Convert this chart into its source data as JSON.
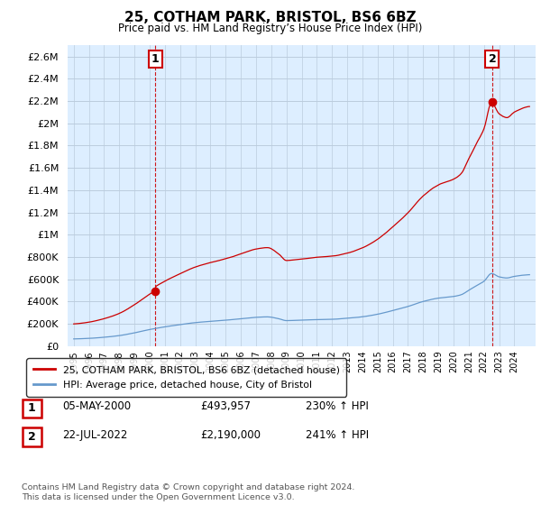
{
  "title": "25, COTHAM PARK, BRISTOL, BS6 6BZ",
  "subtitle": "Price paid vs. HM Land Registry’s House Price Index (HPI)",
  "ylim": [
    0,
    2700000
  ],
  "yticks": [
    0,
    200000,
    400000,
    600000,
    800000,
    1000000,
    1200000,
    1400000,
    1600000,
    1800000,
    2000000,
    2200000,
    2400000,
    2600000
  ],
  "ytick_labels": [
    "£0",
    "£200K",
    "£400K",
    "£600K",
    "£800K",
    "£1M",
    "£1.2M",
    "£1.4M",
    "£1.6M",
    "£1.8M",
    "£2M",
    "£2.2M",
    "£2.4M",
    "£2.6M"
  ],
  "sale1_year": 2000.37,
  "sale1_price": 493957,
  "sale2_year": 2022.55,
  "sale2_price": 2190000,
  "line_color_red": "#cc0000",
  "line_color_blue": "#6699cc",
  "dashed_color": "#cc0000",
  "bg_color": "#ddeeff",
  "grid_color": "#bbccdd",
  "annotation_box_color": "#cc0000",
  "footer": "Contains HM Land Registry data © Crown copyright and database right 2024.\nThis data is licensed under the Open Government Licence v3.0.",
  "legend_label1": "25, COTHAM PARK, BRISTOL, BS6 6BZ (detached house)",
  "legend_label2": "HPI: Average price, detached house, City of Bristol",
  "table_row1": [
    "1",
    "05-MAY-2000",
    "£493,957",
    "230% ↑ HPI"
  ],
  "table_row2": [
    "2",
    "22-JUL-2022",
    "£2,190,000",
    "241% ↑ HPI"
  ]
}
